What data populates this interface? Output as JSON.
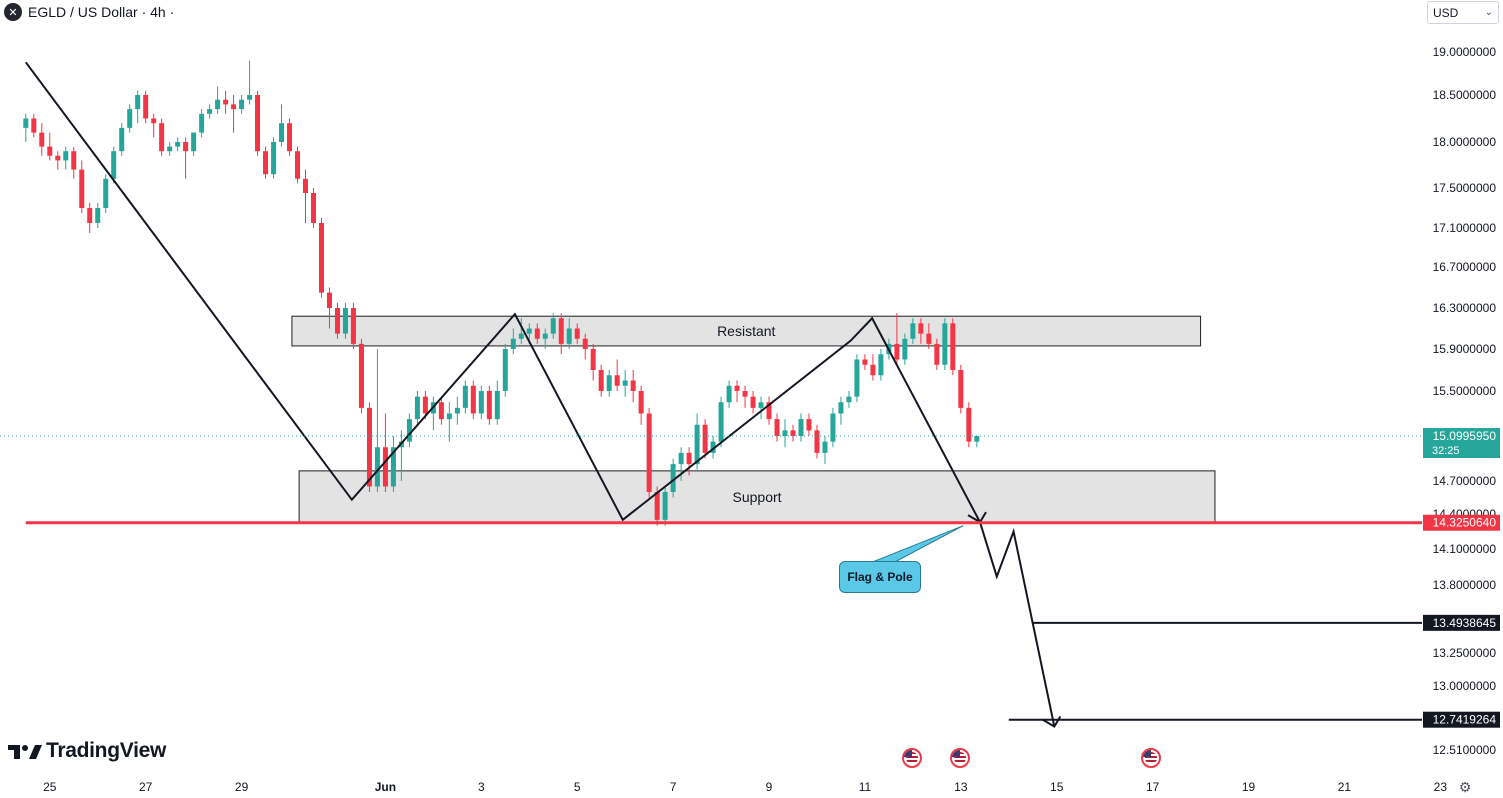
{
  "header": {
    "symbol_icon": "egld-logo-icon",
    "title": "EGLD / US Dollar · 4h ·"
  },
  "currency_selector": {
    "value": "USD",
    "icon": "chevron-down-icon"
  },
  "branding": {
    "name": "TradingView",
    "icon": "tradingview-logo-icon"
  },
  "settings_icon": "gear-icon",
  "colors": {
    "up": "#26a69a",
    "down": "#f23645",
    "zone_fill": "#d9d9d9",
    "zone_border": "#1f1f1f",
    "support_line": "#f23645",
    "callout": "#5ac8e6"
  },
  "chart_data": {
    "type": "candlestick",
    "title": "EGLD / US Dollar · 4h ·",
    "ylabel": "USD",
    "ylim": [
      12.45,
      19.4
    ],
    "y_ticks": [
      "19.0000000",
      "18.5000000",
      "18.0000000",
      "17.5000000",
      "17.1000000",
      "16.7000000",
      "16.3000000",
      "15.9000000",
      "15.5000000",
      "14.7000000",
      "14.4000000",
      "14.1000000",
      "13.8000000",
      "13.2500000",
      "13.0000000",
      "12.5100000"
    ],
    "x_ticks": [
      "25",
      "27",
      "29",
      "Jun",
      "3",
      "5",
      "7",
      "9",
      "11",
      "13",
      "15",
      "17",
      "19",
      "21",
      "23"
    ],
    "x_tick_days": [
      25,
      27,
      29,
      32,
      34,
      36,
      38,
      40,
      42,
      44,
      46,
      48,
      50,
      52,
      54
    ],
    "day_axis_note": "days counted from May 1 (Jun 1 = 32)",
    "zones": [
      {
        "name": "Resistant",
        "label": "Resistant",
        "low": 15.93,
        "high": 16.22,
        "x_start": 30.05,
        "x_end": 49.0
      },
      {
        "name": "Support",
        "label": "Support",
        "low": 14.32,
        "high": 14.79,
        "x_start": 30.2,
        "x_end": 49.3
      }
    ],
    "price_lines": [
      {
        "name": "support-level",
        "value": 14.325064,
        "label": "14.3250640",
        "color": "#f23645",
        "x_start": 24.5
      },
      {
        "name": "target-1",
        "value": 13.4938645,
        "label": "13.4938645",
        "color": "#131722",
        "x_start": 45.5
      },
      {
        "name": "target-2",
        "value": 12.7419264,
        "label": "12.7419264",
        "color": "#131722",
        "x_start": 45.0
      }
    ],
    "last_price": {
      "value": 15.099595,
      "label": "15.0995950",
      "countdown": "32:25",
      "color": "#26a69a"
    },
    "pattern_path": [
      [
        24.5,
        18.88
      ],
      [
        31.3,
        14.53
      ],
      [
        34.7,
        16.24
      ],
      [
        36.95,
        14.35
      ],
      [
        41.7,
        15.98
      ],
      [
        42.15,
        16.2
      ],
      [
        44.4,
        14.33
      ],
      [
        44.75,
        13.87
      ],
      [
        45.1,
        14.25
      ],
      [
        45.95,
        12.69
      ]
    ],
    "arrowheads": [
      [
        44.4,
        14.33
      ],
      [
        45.95,
        12.69
      ]
    ],
    "callout": {
      "label": "Flag & Pole",
      "x": 43.35,
      "y": 14.0,
      "pointer_to": [
        44.05,
        14.3
      ]
    },
    "event_flags": [
      [
        43.5
      ],
      [
        44.5
      ],
      [
        48.5
      ]
    ],
    "candles": [
      {
        "t": 24.5,
        "o": 18.15,
        "h": 18.3,
        "l": 18.0,
        "c": 18.25
      },
      {
        "t": 24.667,
        "o": 18.25,
        "h": 18.3,
        "l": 18.05,
        "c": 18.1
      },
      {
        "t": 24.833,
        "o": 18.1,
        "h": 18.2,
        "l": 17.85,
        "c": 17.95
      },
      {
        "t": 25.0,
        "o": 17.95,
        "h": 18.1,
        "l": 17.8,
        "c": 17.85
      },
      {
        "t": 25.167,
        "o": 17.85,
        "h": 17.9,
        "l": 17.7,
        "c": 17.8
      },
      {
        "t": 25.333,
        "o": 17.8,
        "h": 17.95,
        "l": 17.7,
        "c": 17.9
      },
      {
        "t": 25.5,
        "o": 17.9,
        "h": 17.95,
        "l": 17.6,
        "c": 17.7
      },
      {
        "t": 25.667,
        "o": 17.7,
        "h": 17.8,
        "l": 17.25,
        "c": 17.3
      },
      {
        "t": 25.833,
        "o": 17.3,
        "h": 17.35,
        "l": 17.05,
        "c": 17.15
      },
      {
        "t": 26.0,
        "o": 17.15,
        "h": 17.35,
        "l": 17.1,
        "c": 17.3
      },
      {
        "t": 26.167,
        "o": 17.3,
        "h": 17.65,
        "l": 17.25,
        "c": 17.6
      },
      {
        "t": 26.333,
        "o": 17.6,
        "h": 17.95,
        "l": 17.55,
        "c": 17.9
      },
      {
        "t": 26.5,
        "o": 17.9,
        "h": 18.2,
        "l": 17.85,
        "c": 18.15
      },
      {
        "t": 26.667,
        "o": 18.15,
        "h": 18.4,
        "l": 18.1,
        "c": 18.35
      },
      {
        "t": 26.833,
        "o": 18.35,
        "h": 18.55,
        "l": 18.2,
        "c": 18.5
      },
      {
        "t": 27.0,
        "o": 18.5,
        "h": 18.55,
        "l": 18.2,
        "c": 18.25
      },
      {
        "t": 27.167,
        "o": 18.25,
        "h": 18.3,
        "l": 18.05,
        "c": 18.2
      },
      {
        "t": 27.333,
        "o": 18.2,
        "h": 18.25,
        "l": 17.85,
        "c": 17.9
      },
      {
        "t": 27.5,
        "o": 17.9,
        "h": 18.0,
        "l": 17.85,
        "c": 17.95
      },
      {
        "t": 27.667,
        "o": 17.95,
        "h": 18.05,
        "l": 17.9,
        "c": 18.0
      },
      {
        "t": 27.833,
        "o": 18.0,
        "h": 18.05,
        "l": 17.6,
        "c": 17.9
      },
      {
        "t": 28.0,
        "o": 17.9,
        "h": 18.1,
        "l": 17.85,
        "c": 18.1
      },
      {
        "t": 28.167,
        "o": 18.1,
        "h": 18.35,
        "l": 18.05,
        "c": 18.3
      },
      {
        "t": 28.333,
        "o": 18.3,
        "h": 18.4,
        "l": 18.25,
        "c": 18.35
      },
      {
        "t": 28.5,
        "o": 18.35,
        "h": 18.6,
        "l": 18.3,
        "c": 18.45
      },
      {
        "t": 28.667,
        "o": 18.45,
        "h": 18.55,
        "l": 18.3,
        "c": 18.4
      },
      {
        "t": 28.833,
        "o": 18.4,
        "h": 18.5,
        "l": 18.1,
        "c": 18.35
      },
      {
        "t": 29.0,
        "o": 18.35,
        "h": 18.5,
        "l": 18.3,
        "c": 18.45
      },
      {
        "t": 29.167,
        "o": 18.45,
        "h": 18.9,
        "l": 18.4,
        "c": 18.5
      },
      {
        "t": 29.333,
        "o": 18.5,
        "h": 18.55,
        "l": 17.85,
        "c": 17.9
      },
      {
        "t": 29.5,
        "o": 17.9,
        "h": 17.95,
        "l": 17.6,
        "c": 17.65
      },
      {
        "t": 29.667,
        "o": 17.65,
        "h": 18.05,
        "l": 17.6,
        "c": 18.0
      },
      {
        "t": 29.833,
        "o": 18.0,
        "h": 18.4,
        "l": 17.95,
        "c": 18.2
      },
      {
        "t": 30.0,
        "o": 18.2,
        "h": 18.25,
        "l": 17.85,
        "c": 17.9
      },
      {
        "t": 30.167,
        "o": 17.9,
        "h": 17.95,
        "l": 17.55,
        "c": 17.6
      },
      {
        "t": 30.333,
        "o": 17.6,
        "h": 17.7,
        "l": 17.15,
        "c": 17.45
      },
      {
        "t": 30.5,
        "o": 17.45,
        "h": 17.5,
        "l": 17.1,
        "c": 17.15
      },
      {
        "t": 30.667,
        "o": 17.15,
        "h": 17.2,
        "l": 16.4,
        "c": 16.45
      },
      {
        "t": 30.833,
        "o": 16.45,
        "h": 16.5,
        "l": 16.1,
        "c": 16.3
      },
      {
        "t": 31.0,
        "o": 16.3,
        "h": 16.35,
        "l": 16.0,
        "c": 16.05
      },
      {
        "t": 31.167,
        "o": 16.05,
        "h": 16.35,
        "l": 16.0,
        "c": 16.3
      },
      {
        "t": 31.333,
        "o": 16.3,
        "h": 16.35,
        "l": 15.9,
        "c": 15.95
      },
      {
        "t": 31.5,
        "o": 15.95,
        "h": 16.0,
        "l": 15.3,
        "c": 15.35
      },
      {
        "t": 31.667,
        "o": 15.35,
        "h": 15.4,
        "l": 14.6,
        "c": 14.65
      },
      {
        "t": 31.833,
        "o": 14.65,
        "h": 15.9,
        "l": 14.6,
        "c": 15.0
      },
      {
        "t": 32.0,
        "o": 15.0,
        "h": 15.3,
        "l": 14.6,
        "c": 14.65
      },
      {
        "t": 32.167,
        "o": 14.65,
        "h": 15.1,
        "l": 14.6,
        "c": 15.0
      },
      {
        "t": 32.333,
        "o": 15.0,
        "h": 15.15,
        "l": 14.7,
        "c": 15.05
      },
      {
        "t": 32.5,
        "o": 15.05,
        "h": 15.3,
        "l": 15.0,
        "c": 15.25
      },
      {
        "t": 32.667,
        "o": 15.25,
        "h": 15.5,
        "l": 15.2,
        "c": 15.45
      },
      {
        "t": 32.833,
        "o": 15.45,
        "h": 15.5,
        "l": 15.25,
        "c": 15.3
      },
      {
        "t": 33.0,
        "o": 15.3,
        "h": 15.45,
        "l": 15.15,
        "c": 15.4
      },
      {
        "t": 33.167,
        "o": 15.4,
        "h": 15.45,
        "l": 15.2,
        "c": 15.25
      },
      {
        "t": 33.333,
        "o": 15.25,
        "h": 15.4,
        "l": 15.05,
        "c": 15.3
      },
      {
        "t": 33.5,
        "o": 15.3,
        "h": 15.45,
        "l": 15.2,
        "c": 15.35
      },
      {
        "t": 33.667,
        "o": 15.35,
        "h": 15.6,
        "l": 15.3,
        "c": 15.55
      },
      {
        "t": 33.833,
        "o": 15.55,
        "h": 15.6,
        "l": 15.25,
        "c": 15.3
      },
      {
        "t": 34.0,
        "o": 15.3,
        "h": 15.55,
        "l": 15.25,
        "c": 15.5
      },
      {
        "t": 34.167,
        "o": 15.5,
        "h": 15.55,
        "l": 15.2,
        "c": 15.25
      },
      {
        "t": 34.333,
        "o": 15.25,
        "h": 15.6,
        "l": 15.2,
        "c": 15.5
      },
      {
        "t": 34.5,
        "o": 15.5,
        "h": 15.95,
        "l": 15.45,
        "c": 15.9
      },
      {
        "t": 34.667,
        "o": 15.9,
        "h": 16.1,
        "l": 15.85,
        "c": 16.0
      },
      {
        "t": 34.833,
        "o": 16.0,
        "h": 16.2,
        "l": 15.95,
        "c": 16.05
      },
      {
        "t": 35.0,
        "o": 16.05,
        "h": 16.15,
        "l": 15.95,
        "c": 16.1
      },
      {
        "t": 35.167,
        "o": 16.1,
        "h": 16.15,
        "l": 15.95,
        "c": 16.0
      },
      {
        "t": 35.333,
        "o": 16.0,
        "h": 16.1,
        "l": 15.9,
        "c": 16.05
      },
      {
        "t": 35.5,
        "o": 16.05,
        "h": 16.25,
        "l": 16.0,
        "c": 16.2
      },
      {
        "t": 35.667,
        "o": 16.2,
        "h": 16.25,
        "l": 15.85,
        "c": 15.95
      },
      {
        "t": 35.833,
        "o": 15.95,
        "h": 16.2,
        "l": 15.9,
        "c": 16.1
      },
      {
        "t": 36.0,
        "o": 16.1,
        "h": 16.15,
        "l": 15.95,
        "c": 16.0
      },
      {
        "t": 36.167,
        "o": 16.0,
        "h": 16.05,
        "l": 15.8,
        "c": 15.9
      },
      {
        "t": 36.333,
        "o": 15.9,
        "h": 15.95,
        "l": 15.6,
        "c": 15.7
      },
      {
        "t": 36.5,
        "o": 15.7,
        "h": 15.75,
        "l": 15.45,
        "c": 15.5
      },
      {
        "t": 36.667,
        "o": 15.5,
        "h": 15.7,
        "l": 15.45,
        "c": 15.65
      },
      {
        "t": 36.833,
        "o": 15.65,
        "h": 15.8,
        "l": 15.5,
        "c": 15.55
      },
      {
        "t": 37.0,
        "o": 15.55,
        "h": 15.7,
        "l": 15.45,
        "c": 15.6
      },
      {
        "t": 37.167,
        "o": 15.6,
        "h": 15.7,
        "l": 15.4,
        "c": 15.5
      },
      {
        "t": 37.333,
        "o": 15.5,
        "h": 15.55,
        "l": 15.2,
        "c": 15.3
      },
      {
        "t": 37.5,
        "o": 15.3,
        "h": 15.35,
        "l": 14.55,
        "c": 14.6
      },
      {
        "t": 37.667,
        "o": 14.6,
        "h": 14.65,
        "l": 14.3,
        "c": 14.35
      },
      {
        "t": 37.833,
        "o": 14.35,
        "h": 14.65,
        "l": 14.3,
        "c": 14.6
      },
      {
        "t": 38.0,
        "o": 14.6,
        "h": 14.9,
        "l": 14.55,
        "c": 14.85
      },
      {
        "t": 38.167,
        "o": 14.85,
        "h": 15.0,
        "l": 14.7,
        "c": 14.95
      },
      {
        "t": 38.333,
        "o": 14.95,
        "h": 15.0,
        "l": 14.75,
        "c": 14.85
      },
      {
        "t": 38.5,
        "o": 14.85,
        "h": 15.3,
        "l": 14.8,
        "c": 15.2
      },
      {
        "t": 38.667,
        "o": 15.2,
        "h": 15.25,
        "l": 14.9,
        "c": 14.95
      },
      {
        "t": 38.833,
        "o": 14.95,
        "h": 15.1,
        "l": 14.9,
        "c": 15.05
      },
      {
        "t": 39.0,
        "o": 15.05,
        "h": 15.45,
        "l": 15.0,
        "c": 15.4
      },
      {
        "t": 39.167,
        "o": 15.4,
        "h": 15.6,
        "l": 15.35,
        "c": 15.55
      },
      {
        "t": 39.333,
        "o": 15.55,
        "h": 15.6,
        "l": 15.4,
        "c": 15.5
      },
      {
        "t": 39.5,
        "o": 15.5,
        "h": 15.55,
        "l": 15.35,
        "c": 15.45
      },
      {
        "t": 39.667,
        "o": 15.45,
        "h": 15.5,
        "l": 15.3,
        "c": 15.35
      },
      {
        "t": 39.833,
        "o": 15.35,
        "h": 15.45,
        "l": 15.25,
        "c": 15.4
      },
      {
        "t": 40.0,
        "o": 15.4,
        "h": 15.45,
        "l": 15.2,
        "c": 15.25
      },
      {
        "t": 40.167,
        "o": 15.25,
        "h": 15.3,
        "l": 15.05,
        "c": 15.1
      },
      {
        "t": 40.333,
        "o": 15.1,
        "h": 15.25,
        "l": 15.0,
        "c": 15.15
      },
      {
        "t": 40.5,
        "o": 15.15,
        "h": 15.2,
        "l": 15.05,
        "c": 15.1
      },
      {
        "t": 40.667,
        "o": 15.1,
        "h": 15.3,
        "l": 15.05,
        "c": 15.25
      },
      {
        "t": 40.833,
        "o": 15.25,
        "h": 15.3,
        "l": 15.1,
        "c": 15.15
      },
      {
        "t": 41.0,
        "o": 15.15,
        "h": 15.2,
        "l": 14.9,
        "c": 14.95
      },
      {
        "t": 41.167,
        "o": 14.95,
        "h": 15.1,
        "l": 14.85,
        "c": 15.05
      },
      {
        "t": 41.333,
        "o": 15.05,
        "h": 15.35,
        "l": 15.0,
        "c": 15.3
      },
      {
        "t": 41.5,
        "o": 15.3,
        "h": 15.45,
        "l": 15.2,
        "c": 15.4
      },
      {
        "t": 41.667,
        "o": 15.4,
        "h": 15.5,
        "l": 15.35,
        "c": 15.45
      },
      {
        "t": 41.833,
        "o": 15.45,
        "h": 15.85,
        "l": 15.4,
        "c": 15.8
      },
      {
        "t": 42.0,
        "o": 15.8,
        "h": 15.85,
        "l": 15.7,
        "c": 15.75
      },
      {
        "t": 42.167,
        "o": 15.75,
        "h": 15.85,
        "l": 15.6,
        "c": 15.65
      },
      {
        "t": 42.333,
        "o": 15.65,
        "h": 15.9,
        "l": 15.6,
        "c": 15.85
      },
      {
        "t": 42.5,
        "o": 15.85,
        "h": 16.0,
        "l": 15.8,
        "c": 15.95
      },
      {
        "t": 42.667,
        "o": 15.95,
        "h": 16.25,
        "l": 15.75,
        "c": 15.8
      },
      {
        "t": 42.833,
        "o": 15.8,
        "h": 16.05,
        "l": 15.75,
        "c": 16.0
      },
      {
        "t": 43.0,
        "o": 16.0,
        "h": 16.2,
        "l": 15.95,
        "c": 16.15
      },
      {
        "t": 43.167,
        "o": 16.15,
        "h": 16.2,
        "l": 15.95,
        "c": 16.05
      },
      {
        "t": 43.333,
        "o": 16.05,
        "h": 16.15,
        "l": 15.9,
        "c": 15.95
      },
      {
        "t": 43.5,
        "o": 15.95,
        "h": 16.0,
        "l": 15.7,
        "c": 15.75
      },
      {
        "t": 43.667,
        "o": 15.75,
        "h": 16.2,
        "l": 15.7,
        "c": 16.15
      },
      {
        "t": 43.833,
        "o": 16.15,
        "h": 16.2,
        "l": 15.65,
        "c": 15.7
      },
      {
        "t": 44.0,
        "o": 15.7,
        "h": 15.75,
        "l": 15.3,
        "c": 15.35
      },
      {
        "t": 44.167,
        "o": 15.35,
        "h": 15.4,
        "l": 15.0,
        "c": 15.05
      },
      {
        "t": 44.333,
        "o": 15.05,
        "h": 15.1,
        "l": 15.0,
        "c": 15.1
      }
    ]
  }
}
